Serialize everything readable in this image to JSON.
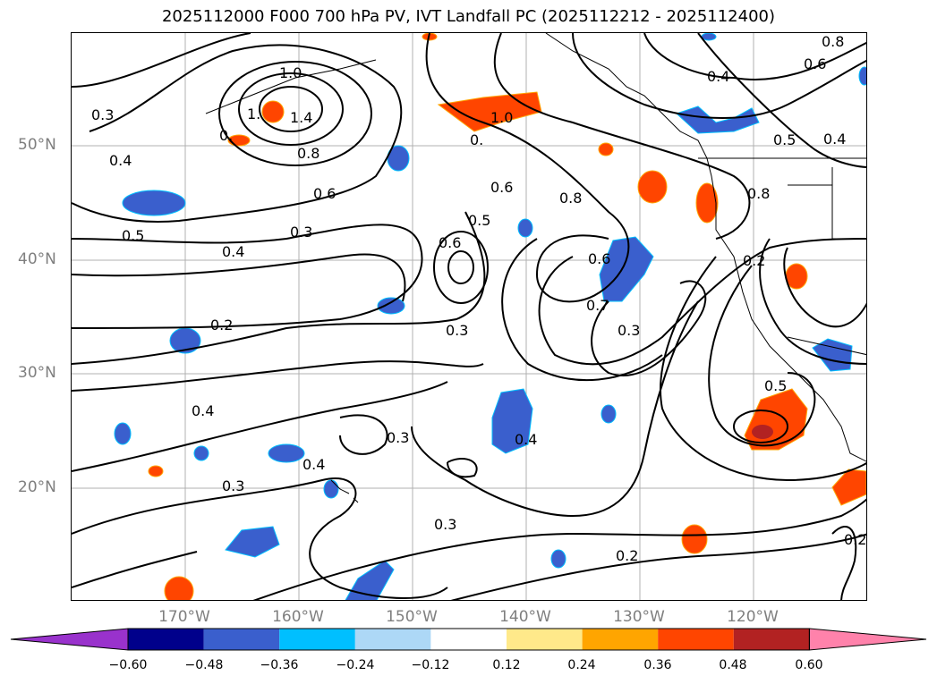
{
  "title": "2025112000 F000 700 hPa PV, IVT Landfall PC (2025112212 - 2025112400)",
  "lat_labels": [
    "50°N",
    "40°N",
    "30°N",
    "20°N"
  ],
  "lon_labels": [
    "170°W",
    "160°W",
    "150°W",
    "140°W",
    "130°W",
    "120°W"
  ],
  "contour_labels": [
    "1.0",
    "1.4",
    "1.",
    "0.",
    "0.3",
    "0.4",
    "0.8",
    "0.6",
    "0.5",
    "0.4",
    "0.3",
    "0.2",
    "0.4",
    "0.3",
    "0.4",
    "0.3",
    "0.2",
    "0.3",
    "0.6",
    "0.5",
    "0.6",
    "0.8",
    "1.0",
    "0.",
    "0.6",
    "0.7",
    "0.3",
    "0.3",
    "0.5",
    "0.4",
    "0.8",
    "0.5",
    "0.6",
    "0.8",
    "0.2",
    "0.4",
    "0.4",
    "0.2"
  ],
  "colorbar": {
    "ticks": [
      "−0.60",
      "−0.48",
      "−0.36",
      "−0.24",
      "−0.12",
      "0.12",
      "0.24",
      "0.36",
      "0.48",
      "0.60"
    ],
    "colors": [
      "#9932cc",
      "#00008b",
      "#3a5fcd",
      "#00bfff",
      "#add8f6",
      "#ffffff",
      "#ffe98a",
      "#ffa500",
      "#ff4500",
      "#b22222",
      "#ff82ab"
    ]
  }
}
